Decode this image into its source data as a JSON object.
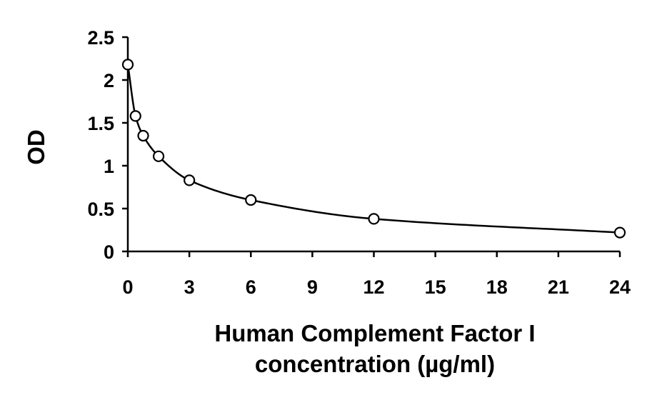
{
  "chart_data": {
    "type": "scatter",
    "title": "",
    "xlabel": [
      "Human Complement Factor I",
      "concentration (µg/ml)"
    ],
    "ylabel": "OD",
    "xlim": [
      0,
      24
    ],
    "ylim": [
      0,
      2.5
    ],
    "x_ticks": [
      "0",
      "3",
      "6",
      "9",
      "12",
      "15",
      "18",
      "21",
      "24"
    ],
    "y_ticks": [
      "0",
      "0.5",
      "1",
      "1.5",
      "2",
      "2.5"
    ],
    "grid": false,
    "legend": "none",
    "series": [
      {
        "points": [
          {
            "x": 0,
            "y": 2.18
          },
          {
            "x": 0.375,
            "y": 1.58
          },
          {
            "x": 0.75,
            "y": 1.35
          },
          {
            "x": 1.5,
            "y": 1.11
          },
          {
            "x": 3,
            "y": 0.83
          },
          {
            "x": 6,
            "y": 0.6
          },
          {
            "x": 12,
            "y": 0.38
          },
          {
            "x": 24,
            "y": 0.22
          }
        ],
        "marker": "open-circle",
        "trendline": true
      }
    ],
    "colors": {
      "axis": "#000000",
      "marker": "#000000",
      "curve": "#000000"
    }
  }
}
